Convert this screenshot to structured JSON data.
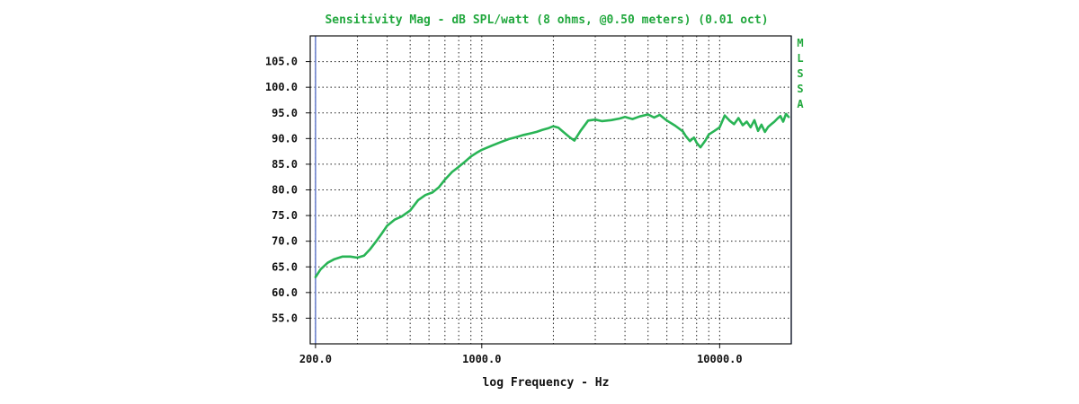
{
  "chart_data": {
    "type": "line",
    "title": "Sensitivity Mag - dB SPL/watt (8 ohms, @0.50 meters) (0.01 oct)",
    "side_label": "MLSSA",
    "xlabel": "log Frequency - Hz",
    "ylabel": "",
    "x_scale": "log",
    "xlim": [
      190,
      20000
    ],
    "ylim": [
      50,
      110
    ],
    "x_ticks": [
      {
        "value": 200,
        "label": "200.0"
      },
      {
        "value": 1000,
        "label": "1000.0"
      },
      {
        "value": 10000,
        "label": "10000.0"
      }
    ],
    "y_ticks": [
      {
        "value": 55,
        "label": "55.0"
      },
      {
        "value": 60,
        "label": "60.0"
      },
      {
        "value": 65,
        "label": "65.0"
      },
      {
        "value": 70,
        "label": "70.0"
      },
      {
        "value": 75,
        "label": "75.0"
      },
      {
        "value": 80,
        "label": "80.0"
      },
      {
        "value": 85,
        "label": "85.0"
      },
      {
        "value": 90,
        "label": "90.0"
      },
      {
        "value": 95,
        "label": "95.0"
      },
      {
        "value": 100,
        "label": "100.0"
      },
      {
        "value": 105,
        "label": "105.0"
      }
    ],
    "grid": true,
    "markers": [
      200,
      20000
    ],
    "series": [
      {
        "x": [
          200,
          210,
          225,
          240,
          260,
          280,
          300,
          320,
          340,
          360,
          380,
          400,
          430,
          460,
          500,
          540,
          580,
          620,
          660,
          700,
          750,
          800,
          850,
          900,
          950,
          1000,
          1100,
          1200,
          1300,
          1400,
          1500,
          1600,
          1700,
          1800,
          1900,
          2000,
          2100,
          2200,
          2350,
          2450,
          2600,
          2800,
          3000,
          3200,
          3500,
          3800,
          4000,
          4300,
          4600,
          5000,
          5300,
          5600,
          6000,
          6500,
          7000,
          7200,
          7500,
          7800,
          8000,
          8300,
          8700,
          9000,
          9500,
          10000,
          10500,
          11000,
          11500,
          12000,
          12500,
          13000,
          13500,
          14000,
          14500,
          15000,
          15500,
          16000,
          16500,
          17000,
          17500,
          18000,
          18500,
          19000,
          19500
        ],
        "y": [
          63,
          64.5,
          65.8,
          66.5,
          67,
          67,
          66.8,
          67.2,
          68.5,
          70,
          71.5,
          73,
          74.2,
          74.8,
          76,
          78,
          79,
          79.5,
          80.5,
          82,
          83.5,
          84.5,
          85.5,
          86.5,
          87.2,
          87.8,
          88.6,
          89.3,
          89.9,
          90.3,
          90.7,
          91,
          91.3,
          91.7,
          92,
          92.4,
          92.1,
          91.3,
          90.2,
          89.6,
          91.5,
          93.5,
          93.7,
          93.4,
          93.6,
          93.9,
          94.2,
          93.8,
          94.3,
          94.7,
          94.1,
          94.6,
          93.5,
          92.5,
          91.4,
          90.5,
          89.5,
          90.2,
          89.2,
          88.3,
          89.6,
          90.8,
          91.5,
          92.2,
          94.5,
          93.5,
          92.8,
          94,
          92.6,
          93.3,
          92.2,
          93.6,
          91.5,
          92.7,
          91.3,
          92.3,
          92.8,
          93.3,
          93.9,
          94.4,
          93.3,
          94.8,
          94.2
        ]
      }
    ]
  },
  "colors": {
    "curve": "#29b455",
    "title": "#22a83e",
    "grid": "#222222",
    "axis": "#111111",
    "marker": "#5b74c8"
  }
}
